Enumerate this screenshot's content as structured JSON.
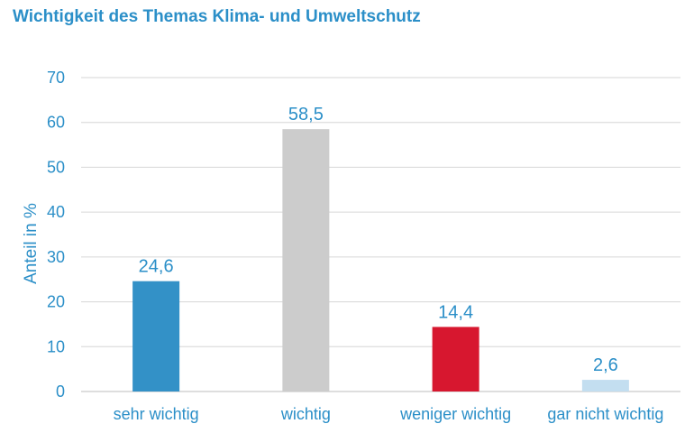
{
  "chart_data": {
    "type": "bar",
    "title": "Wichtigkeit des Themas Klima- und Umweltschutz",
    "xlabel": "",
    "ylabel": "Anteil in %",
    "categories": [
      "sehr wichtig",
      "wichtig",
      "weniger wichtig",
      "gar nicht wichtig"
    ],
    "values": [
      24.6,
      58.5,
      14.4,
      2.6
    ],
    "value_labels": [
      "24,6",
      "58,5",
      "14,4",
      "2,6"
    ],
    "colors": [
      "#3391c7",
      "#cccccc",
      "#d7172f",
      "#c3def0"
    ],
    "ylim": [
      0,
      70
    ],
    "yticks": [
      0,
      10,
      20,
      30,
      40,
      50,
      60,
      70
    ],
    "grid": true,
    "legend": "none"
  }
}
